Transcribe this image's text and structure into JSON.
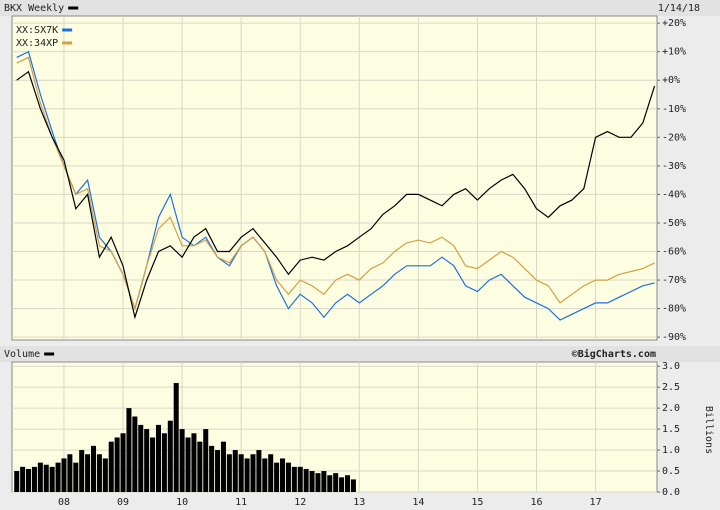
{
  "chart_data": [
    {
      "type": "line",
      "title": "BKX Weekly",
      "date": "1/14/18",
      "x": [
        2007.2,
        2007.4,
        2007.6,
        2007.8,
        2008.0,
        2008.2,
        2008.4,
        2008.6,
        2008.8,
        2009.0,
        2009.2,
        2009.4,
        2009.6,
        2009.8,
        2010.0,
        2010.2,
        2010.4,
        2010.6,
        2010.8,
        2011.0,
        2011.2,
        2011.4,
        2011.6,
        2011.8,
        2012.0,
        2012.2,
        2012.4,
        2012.6,
        2012.8,
        2013.0,
        2013.2,
        2013.4,
        2013.6,
        2013.8,
        2014.0,
        2014.2,
        2014.4,
        2014.6,
        2014.8,
        2015.0,
        2015.2,
        2015.4,
        2015.6,
        2015.8,
        2016.0,
        2016.2,
        2016.4,
        2016.6,
        2016.8,
        2017.0,
        2017.2,
        2017.4,
        2017.6,
        2017.8,
        2018.0
      ],
      "series": [
        {
          "name": "XX:SX7K",
          "color": "#1e6fe0",
          "values": [
            8,
            10,
            -5,
            -18,
            -30,
            -40,
            -35,
            -55,
            -60,
            -68,
            -80,
            -65,
            -48,
            -40,
            -55,
            -58,
            -55,
            -62,
            -65,
            -58,
            -55,
            -60,
            -72,
            -80,
            -75,
            -78,
            -83,
            -78,
            -75,
            -78,
            -75,
            -72,
            -68,
            -65,
            -65,
            -65,
            -62,
            -65,
            -72,
            -74,
            -70,
            -68,
            -72,
            -76,
            -78,
            -80,
            -84,
            -82,
            -80,
            -78,
            -78,
            -76,
            -74,
            -72,
            -71
          ]
        },
        {
          "name": "XX:34XP",
          "color": "#d4a040",
          "values": [
            6,
            8,
            -8,
            -20,
            -30,
            -40,
            -38,
            -58,
            -60,
            -68,
            -80,
            -65,
            -52,
            -48,
            -58,
            -58,
            -56,
            -62,
            -64,
            -58,
            -55,
            -60,
            -70,
            -75,
            -70,
            -72,
            -75,
            -70,
            -68,
            -70,
            -66,
            -64,
            -60,
            -57,
            -56,
            -57,
            -55,
            -58,
            -65,
            -66,
            -63,
            -60,
            -62,
            -66,
            -70,
            -72,
            -78,
            -75,
            -72,
            -70,
            -70,
            -68,
            -67,
            -66,
            -64
          ]
        },
        {
          "name": "BKX Weekly",
          "color": "#000000",
          "values": [
            0,
            3,
            -10,
            -20,
            -28,
            -45,
            -40,
            -62,
            -55,
            -65,
            -83,
            -70,
            -60,
            -58,
            -62,
            -55,
            -52,
            -60,
            -60,
            -55,
            -52,
            -57,
            -62,
            -68,
            -63,
            -62,
            -63,
            -60,
            -58,
            -55,
            -52,
            -47,
            -44,
            -40,
            -40,
            -42,
            -44,
            -40,
            -38,
            -42,
            -38,
            -35,
            -33,
            -38,
            -45,
            -48,
            -44,
            -42,
            -38,
            -20,
            -18,
            -20,
            -20,
            -15,
            -2
          ]
        }
      ],
      "xlim": [
        2007.12,
        2018.04
      ],
      "ylim": [
        -91,
        22.5
      ],
      "yticks": [
        {
          "value": 20,
          "label": "+20%"
        },
        {
          "value": 10,
          "label": "+10%"
        },
        {
          "value": 0,
          "label": "+0%"
        },
        {
          "value": -10,
          "label": "-10%"
        },
        {
          "value": -20,
          "label": "-20%"
        },
        {
          "value": -30,
          "label": "-30%"
        },
        {
          "value": -40,
          "label": "-40%"
        },
        {
          "value": -50,
          "label": "-50%"
        },
        {
          "value": -60,
          "label": "-60%"
        },
        {
          "value": -70,
          "label": "-70%"
        },
        {
          "value": -80,
          "label": "-80%"
        },
        {
          "value": -90,
          "label": "-90%"
        }
      ],
      "grid": true
    },
    {
      "type": "bar",
      "title": "Volume",
      "source": "©BigCharts.com",
      "ylabel": "Billions",
      "color": "#000000",
      "x": [
        2007.2,
        2007.3,
        2007.4,
        2007.5,
        2007.6,
        2007.7,
        2007.8,
        2007.9,
        2008.0,
        2008.1,
        2008.2,
        2008.3,
        2008.4,
        2008.5,
        2008.6,
        2008.7,
        2008.8,
        2008.9,
        2009.0,
        2009.1,
        2009.2,
        2009.3,
        2009.4,
        2009.5,
        2009.6,
        2009.7,
        2009.8,
        2009.9,
        2010.0,
        2010.1,
        2010.2,
        2010.3,
        2010.4,
        2010.5,
        2010.6,
        2010.7,
        2010.8,
        2010.9,
        2011.0,
        2011.1,
        2011.2,
        2011.3,
        2011.4,
        2011.5,
        2011.6,
        2011.7,
        2011.8,
        2011.9,
        2012.0,
        2012.1,
        2012.2,
        2012.3,
        2012.4,
        2012.5,
        2012.6,
        2012.7,
        2012.8,
        2012.9
      ],
      "values": [
        0.5,
        0.6,
        0.55,
        0.6,
        0.7,
        0.65,
        0.6,
        0.7,
        0.8,
        0.9,
        0.7,
        1.0,
        0.9,
        1.1,
        0.9,
        0.8,
        1.2,
        1.3,
        1.4,
        2.0,
        1.8,
        1.6,
        1.5,
        1.3,
        1.6,
        1.4,
        1.7,
        2.6,
        1.5,
        1.3,
        1.4,
        1.2,
        1.5,
        1.1,
        1.0,
        1.2,
        0.9,
        1.0,
        0.9,
        0.8,
        0.9,
        1.0,
        0.8,
        0.9,
        0.7,
        0.8,
        0.7,
        0.6,
        0.6,
        0.55,
        0.5,
        0.45,
        0.5,
        0.4,
        0.45,
        0.35,
        0.4,
        0.3
      ],
      "xlim": [
        2007.12,
        2018.04
      ],
      "xticks": [
        {
          "value": 2008,
          "label": "08"
        },
        {
          "value": 2009,
          "label": "09"
        },
        {
          "value": 2010,
          "label": "10"
        },
        {
          "value": 2011,
          "label": "11"
        },
        {
          "value": 2012,
          "label": "12"
        },
        {
          "value": 2013,
          "label": "13"
        },
        {
          "value": 2014,
          "label": "14"
        },
        {
          "value": 2015,
          "label": "15"
        },
        {
          "value": 2016,
          "label": "16"
        },
        {
          "value": 2017,
          "label": "17"
        }
      ],
      "ylim": [
        0,
        3.1
      ],
      "yticks": [
        {
          "value": 0,
          "label": "0.0"
        },
        0.5,
        {
          "value": 1,
          "label": "1.0"
        },
        1.5,
        {
          "value": 2,
          "label": "2.0"
        },
        2.5,
        {
          "value": 3,
          "label": "3.0"
        }
      ],
      "grid": true
    }
  ]
}
